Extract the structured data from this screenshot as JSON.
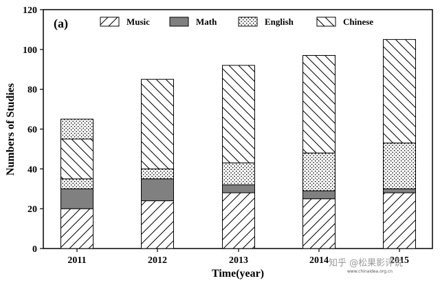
{
  "chart_data": {
    "type": "bar",
    "stacked": true,
    "panel_label": "(a)",
    "title": "",
    "xlabel": "Time(year)",
    "ylabel": "Numbers of Studies",
    "ylim": [
      0,
      120
    ],
    "yticks": [
      0,
      20,
      40,
      60,
      80,
      100,
      120
    ],
    "categories": [
      "2011",
      "2012",
      "2013",
      "2014",
      "2015"
    ],
    "legend_position": "top",
    "grid": false,
    "series": [
      {
        "name": "Music",
        "pattern": "forward-hatch",
        "color": "#ffffff",
        "values": [
          20,
          24,
          28,
          25,
          28
        ]
      },
      {
        "name": "Math",
        "pattern": "solid",
        "color": "#808080",
        "values": [
          10,
          11,
          4,
          4,
          2
        ]
      },
      {
        "name": "English",
        "pattern": "dots",
        "color": "#ffffff",
        "values": [
          5,
          5,
          11,
          19,
          23
        ]
      },
      {
        "name": "Chinese",
        "pattern": "back-hatch",
        "color": "#ffffff",
        "values": [
          20,
          45,
          49,
          49,
          52
        ]
      },
      {
        "name": "",
        "pattern": "dots",
        "color": "#ffffff",
        "values": [
          10,
          0,
          0,
          0,
          0
        ]
      }
    ]
  },
  "watermark": {
    "text": "知乎 @松果影评说",
    "small_text": "www.chinaidea.org.cn"
  }
}
